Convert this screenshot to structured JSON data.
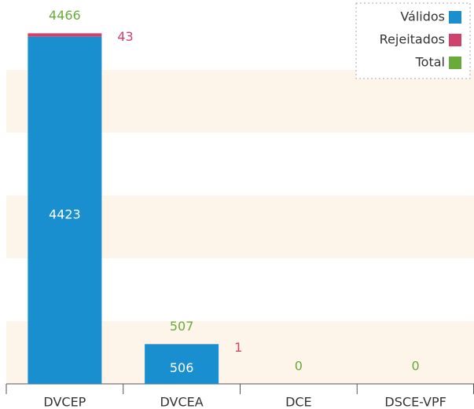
{
  "chart_data": {
    "type": "stacked-bar",
    "categories": [
      "DVCEP",
      "DVCEA",
      "DCE",
      "DSCE-VPF"
    ],
    "series": [
      {
        "name": "Válidos",
        "color": "#1a8fd0",
        "values": [
          4423,
          506,
          0,
          0
        ]
      },
      {
        "name": "Rejeitados",
        "color": "#d0416b",
        "values": [
          43,
          1,
          0,
          0
        ]
      },
      {
        "name": "Total",
        "color": "#6aaa3a",
        "values": [
          4466,
          507,
          0,
          0
        ]
      }
    ],
    "ylim": [
      0,
      4800
    ],
    "yticks": [
      0,
      800,
      1600,
      2400,
      3200,
      4000,
      4800
    ],
    "band_color": "#fdf5ea",
    "legend": "top-right"
  }
}
